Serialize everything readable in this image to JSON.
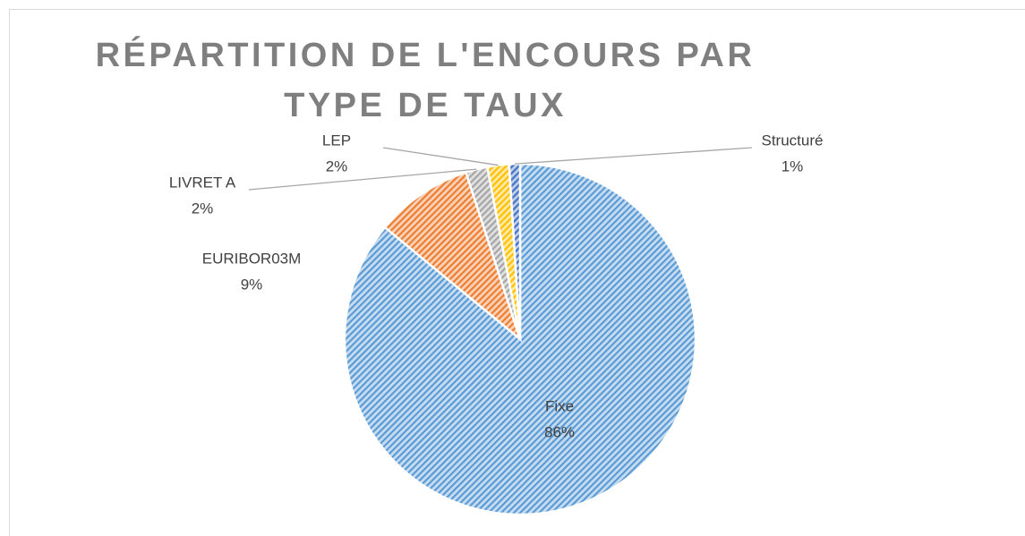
{
  "chart_data": {
    "type": "pie",
    "title": "RÉPARTITION DE L'ENCOURS PAR TYPE DE TAUX",
    "categories": [
      "Fixe",
      "EURIBOR03M",
      "LIVRET A",
      "LEP",
      "Structuré"
    ],
    "values": [
      86,
      9,
      2,
      2,
      1
    ],
    "value_labels": [
      "86%",
      "9%",
      "2%",
      "2%",
      "1%"
    ],
    "colors": [
      "#5b9bd5",
      "#ed7d31",
      "#a5a5a5",
      "#ffc000",
      "#4472c4"
    ]
  }
}
